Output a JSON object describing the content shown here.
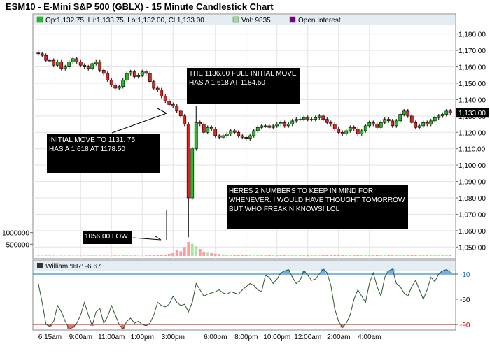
{
  "title": "ESM10 - E-Mini S&P 500 (GBLX) - 15 Minute Candlestick Chart",
  "legend": {
    "ohlc": "Op:1,132.75, Hi:1,133.75, Lo:1,132.00, Cl:1,133.00",
    "vol": "Vol: 9835",
    "oi": "Open Interest",
    "colors": {
      "ohlc": "#22bb22",
      "vol": "#99dd99",
      "oi": "#800080"
    }
  },
  "price_tag": "1,133.00",
  "annotations": {
    "a1": "THE 1136.00 FULL INITIAL MOVE\nHAS A 1.618 AT 1184.50",
    "a2": "INITIAL MOVE TO 1131. 75\nHAS A 1.618 AT 1178.50",
    "a3": "HERES 2 NUMBERS TO KEEP IN MIND FOR\nWHENEVER.  I WOULD HAVE THOUGHT TOMORROW\nBUT WHO FREAKIN KNOWS! LOL",
    "a4": "1056.00 LOW"
  },
  "indicator_label": "William %R: -6.67",
  "chart_data": {
    "type": "candlestick",
    "title": "ESM10 - E-Mini S&P 500 (GBLX) - 15 Minute Candlestick Chart",
    "price_ylim": [
      1045,
      1185
    ],
    "price_ticks": [
      "1,050.00",
      "1,060.00",
      "1,070.00",
      "1,080.00",
      "1,090.00",
      "1,100.00",
      "1,110.00",
      "1,120.00",
      "1,130.00",
      "1,140.00",
      "1,150.00",
      "1,160.00",
      "1,170.00",
      "1,180.00"
    ],
    "volume_ticks": [
      "500000",
      "1000000"
    ],
    "x_tick_labels": [
      "6:15am",
      "9:00am",
      "11:00am",
      "1:00pm",
      "3:00pm",
      "6:00pm",
      "8:00pm",
      "10:00pm",
      "12:00am",
      "2:00am",
      "4:00am"
    ],
    "closes": [
      1168,
      1167,
      1164,
      1164,
      1161,
      1163,
      1159,
      1160,
      1163,
      1165,
      1163,
      1161,
      1160,
      1159,
      1162,
      1163,
      1158,
      1156,
      1152,
      1149,
      1147,
      1148,
      1152,
      1156,
      1157,
      1154,
      1155,
      1157,
      1156,
      1151,
      1147,
      1146,
      1142,
      1139,
      1137,
      1136,
      1133,
      1130,
      1125,
      1080,
      1110,
      1126,
      1125,
      1120,
      1123,
      1122,
      1118,
      1117,
      1118,
      1119,
      1121,
      1120,
      1118,
      1117,
      1116,
      1118,
      1121,
      1123,
      1124,
      1124,
      1123,
      1124,
      1125,
      1126,
      1124,
      1125,
      1127,
      1128,
      1128,
      1129,
      1128,
      1128,
      1129,
      1130,
      1128,
      1126,
      1125,
      1122,
      1120,
      1119,
      1121,
      1123,
      1122,
      1119,
      1121,
      1124,
      1126,
      1125,
      1123,
      1126,
      1128,
      1127,
      1124,
      1127,
      1131,
      1133,
      1130,
      1126,
      1123,
      1124,
      1126,
      1125,
      1127,
      1129,
      1130,
      1131,
      1133,
      1132
    ],
    "volume": [
      20,
      15,
      18,
      22,
      15,
      12,
      14,
      18,
      20,
      16,
      15,
      14,
      12,
      18,
      22,
      20,
      18,
      16,
      14,
      12,
      22,
      25,
      30,
      28,
      22,
      20,
      18,
      16,
      22,
      28,
      30,
      35,
      40,
      60,
      90,
      120,
      260,
      200,
      380,
      600,
      520,
      420,
      300,
      180,
      140,
      120,
      100,
      90,
      70,
      60,
      50,
      45,
      40,
      35,
      30,
      28,
      25,
      30,
      35,
      40,
      45,
      40,
      35,
      30,
      28,
      25,
      30,
      35,
      40,
      38,
      35,
      30,
      28,
      25,
      30,
      35,
      40,
      45,
      40,
      35,
      30,
      28,
      25,
      30,
      35,
      40,
      45,
      50,
      45,
      40,
      35,
      30,
      28,
      35,
      40,
      45,
      50,
      45,
      40,
      35,
      30,
      28,
      30,
      35,
      40,
      45,
      50,
      60
    ],
    "volume_ylim": [
      0,
      1200000
    ],
    "indicator": {
      "name": "William %R",
      "last": -6.67,
      "ylim": [
        -100,
        0
      ],
      "levels": [
        -10,
        -50,
        -90
      ],
      "level_colors": {
        "-10": "#0070c0",
        "-90": "#d00000"
      },
      "values": [
        -25,
        -55,
        -90,
        -93,
        -85,
        -60,
        -70,
        -85,
        -97,
        -95,
        -88,
        -75,
        -55,
        -75,
        -92,
        -70,
        -65,
        -88,
        -78,
        -60,
        -75,
        -90,
        -97,
        -85,
        -80,
        -88,
        -85,
        -90,
        -92,
        -88,
        -75,
        -55,
        -60,
        -62,
        -58,
        -45,
        -55,
        -60,
        -58,
        -70,
        -55,
        -25,
        -35,
        -45,
        -42,
        -40,
        -38,
        -35,
        -40,
        -42,
        -38,
        -40,
        -42,
        -35,
        -30,
        -25,
        -28,
        -35,
        -38,
        -12,
        -15,
        -25,
        -18,
        -8,
        -5,
        -3,
        -15,
        -25,
        -20,
        -5,
        -12,
        -20,
        -18,
        -10,
        -2,
        -8,
        -28,
        -65,
        -85,
        -95,
        -88,
        -75,
        -50,
        -35,
        -45,
        -55,
        -25,
        -8,
        -30,
        -45,
        -15,
        -5,
        -2,
        -25,
        -30,
        -40,
        -45,
        -30,
        -20,
        -35,
        -50,
        -35,
        -15,
        -22,
        -10,
        -5,
        -3,
        -7
      ]
    }
  }
}
